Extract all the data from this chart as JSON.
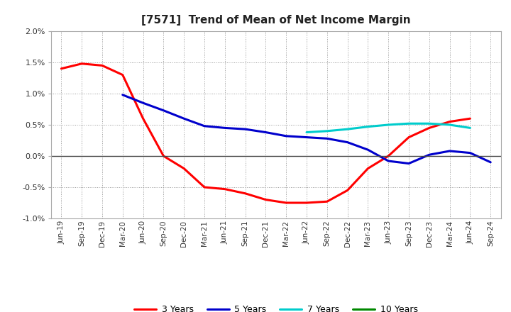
{
  "title": "[7571]  Trend of Mean of Net Income Margin",
  "x_labels": [
    "Jun-19",
    "Sep-19",
    "Dec-19",
    "Mar-20",
    "Jun-20",
    "Sep-20",
    "Dec-20",
    "Mar-21",
    "Jun-21",
    "Sep-21",
    "Dec-21",
    "Mar-22",
    "Jun-22",
    "Sep-22",
    "Dec-22",
    "Mar-23",
    "Jun-23",
    "Sep-23",
    "Dec-23",
    "Mar-24",
    "Jun-24",
    "Sep-24"
  ],
  "ylim": [
    -0.01,
    0.02
  ],
  "yticks": [
    -0.01,
    -0.005,
    0.0,
    0.005,
    0.01,
    0.015,
    0.02
  ],
  "ytick_labels": [
    "-1.0%",
    "-0.5%",
    "0.0%",
    "0.5%",
    "1.0%",
    "1.5%",
    "2.0%"
  ],
  "series": {
    "3 Years": {
      "color": "#ff0000",
      "data": [
        0.014,
        0.0148,
        0.0145,
        0.013,
        0.006,
        0.0,
        -0.002,
        -0.005,
        -0.0053,
        -0.006,
        -0.007,
        -0.0075,
        -0.0075,
        -0.0073,
        -0.0055,
        -0.002,
        0.0,
        0.003,
        0.0045,
        0.0055,
        0.006,
        null
      ]
    },
    "5 Years": {
      "color": "#0000cc",
      "data": [
        null,
        null,
        null,
        0.0098,
        0.0085,
        0.0073,
        0.006,
        0.0048,
        0.0045,
        0.0043,
        0.0038,
        0.0032,
        0.003,
        0.0028,
        0.0022,
        0.001,
        -0.0008,
        -0.0012,
        0.0002,
        0.0008,
        0.0005,
        -0.001
      ]
    },
    "7 Years": {
      "color": "#00cccc",
      "data": [
        null,
        null,
        null,
        null,
        null,
        null,
        null,
        null,
        null,
        null,
        null,
        null,
        0.0038,
        0.004,
        0.0043,
        0.0047,
        0.005,
        0.0052,
        0.0052,
        0.005,
        0.0045,
        null
      ]
    },
    "10 Years": {
      "color": "#008800",
      "data": [
        null,
        null,
        null,
        null,
        null,
        null,
        null,
        null,
        null,
        null,
        null,
        null,
        null,
        null,
        null,
        null,
        null,
        null,
        null,
        null,
        null,
        null
      ]
    }
  },
  "legend_order": [
    "3 Years",
    "5 Years",
    "7 Years",
    "10 Years"
  ],
  "background_color": "#ffffff",
  "grid_color": "#999999",
  "plot_bg": "#f8f8f8"
}
